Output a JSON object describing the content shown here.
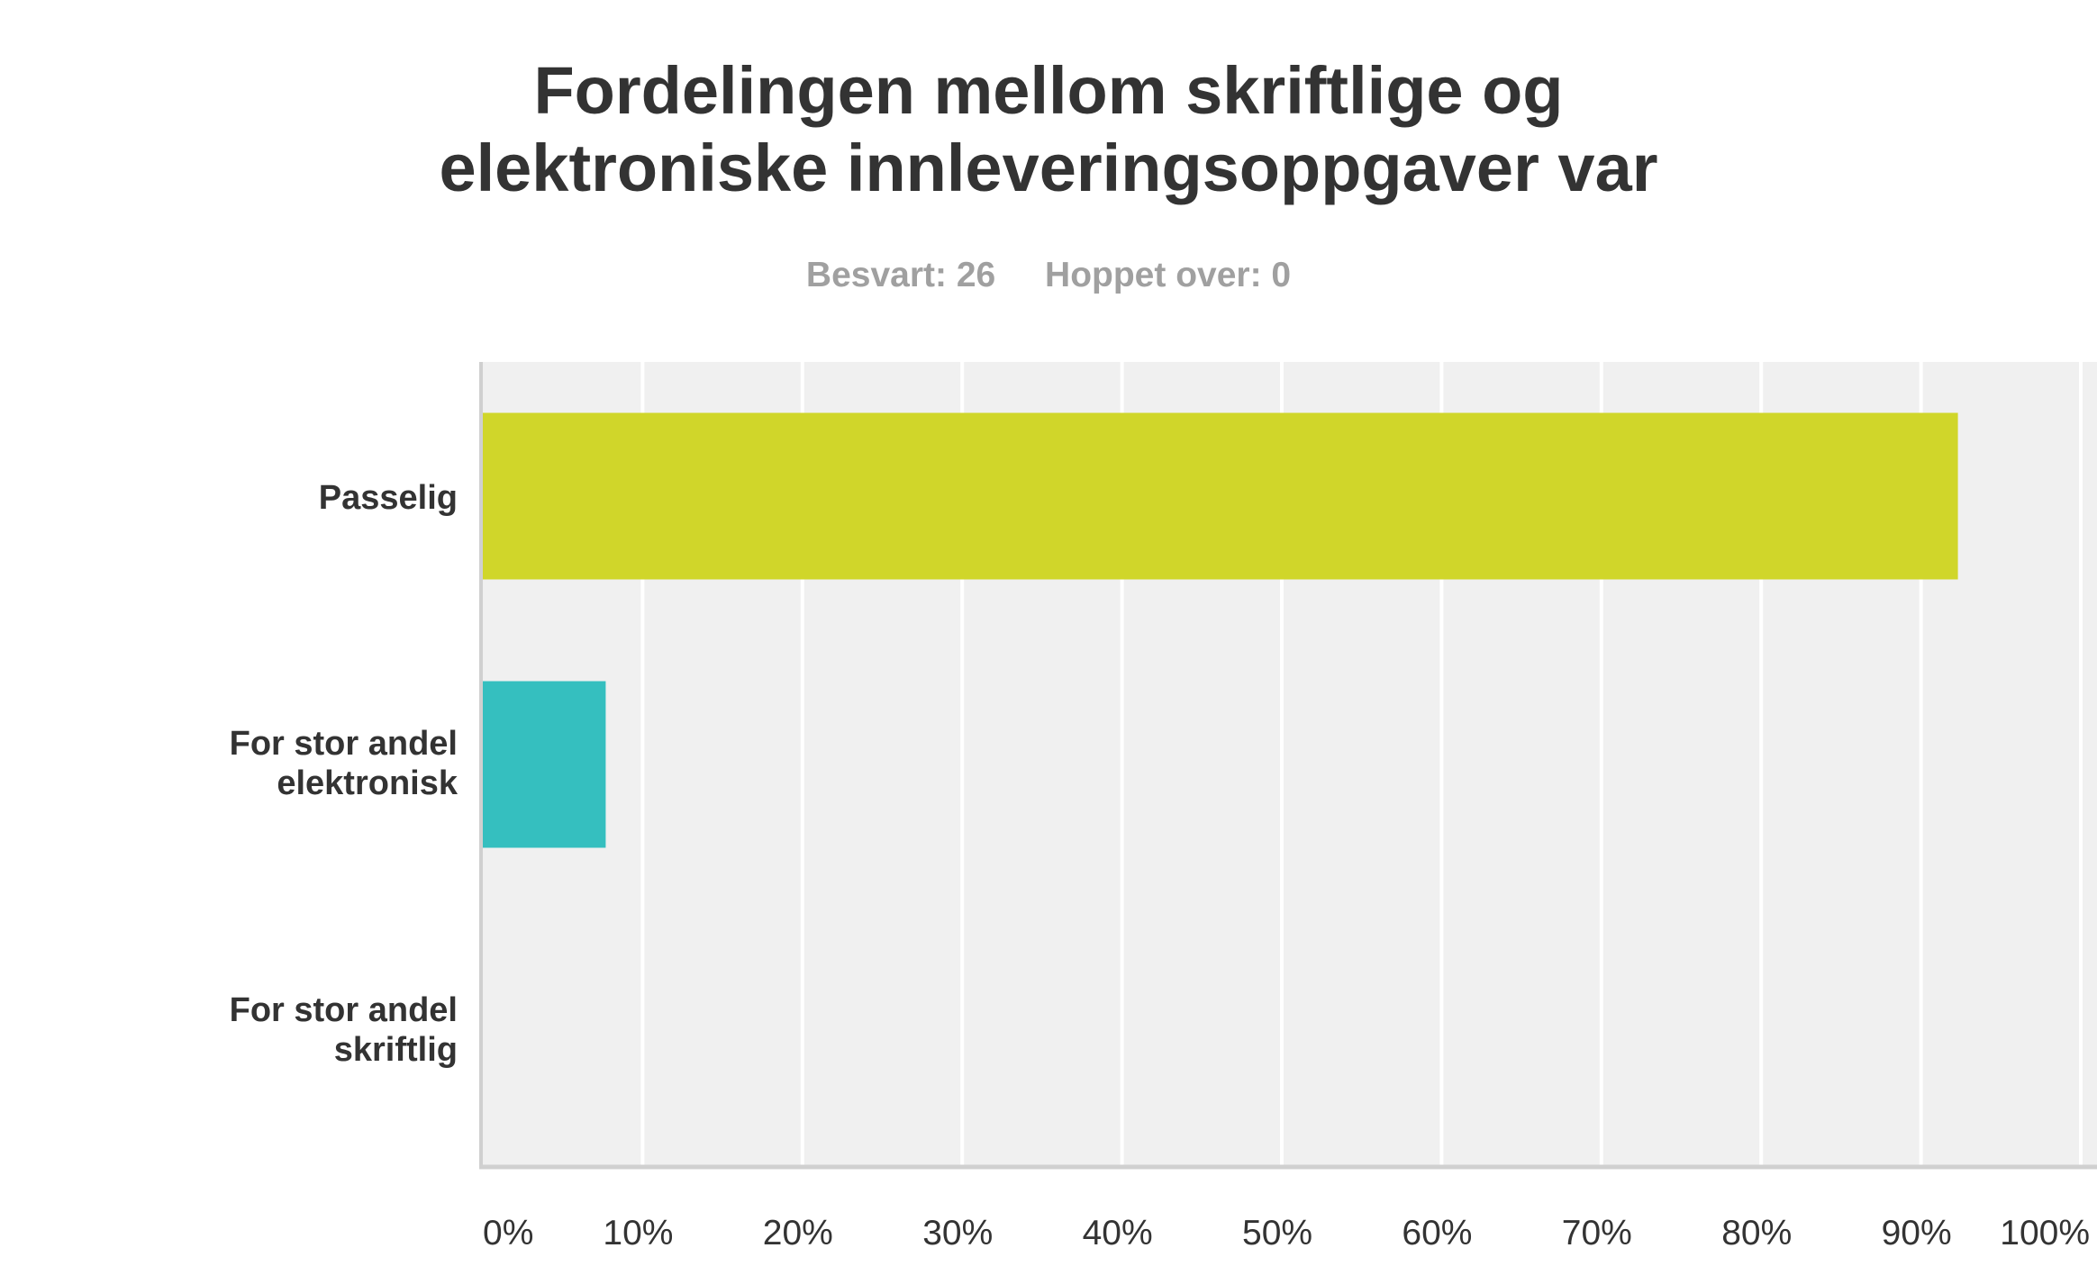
{
  "chart_data": {
    "type": "bar",
    "orientation": "horizontal",
    "title_lines": [
      "Fordelingen mellom skriftlige og",
      "elektroniske innleveringsoppgaver var"
    ],
    "answered_label": "Besvart: 26",
    "skipped_label": "Hoppet over: 0",
    "categories": [
      {
        "lines": [
          "Passelig"
        ],
        "value": 92.31,
        "color": "#d0d62a"
      },
      {
        "lines": [
          "For stor andel",
          "elektronisk"
        ],
        "value": 7.69,
        "color": "#35bfbf"
      },
      {
        "lines": [
          "For stor andel",
          "skriftlig"
        ],
        "value": 0,
        "color": "#f7931e"
      }
    ],
    "xlim": [
      0,
      100
    ],
    "x_ticks": [
      {
        "value": 0,
        "label": "0%"
      },
      {
        "value": 10,
        "label": "10%"
      },
      {
        "value": 20,
        "label": "20%"
      },
      {
        "value": 30,
        "label": "30%"
      },
      {
        "value": 40,
        "label": "40%"
      },
      {
        "value": 50,
        "label": "50%"
      },
      {
        "value": 60,
        "label": "60%"
      },
      {
        "value": 70,
        "label": "70%"
      },
      {
        "value": 80,
        "label": "80%"
      },
      {
        "value": 90,
        "label": "90%"
      },
      {
        "value": 100,
        "label": "100%"
      }
    ],
    "grid": true,
    "background_color": "#f0f0f0",
    "axis_color": "#d0d0d0"
  }
}
